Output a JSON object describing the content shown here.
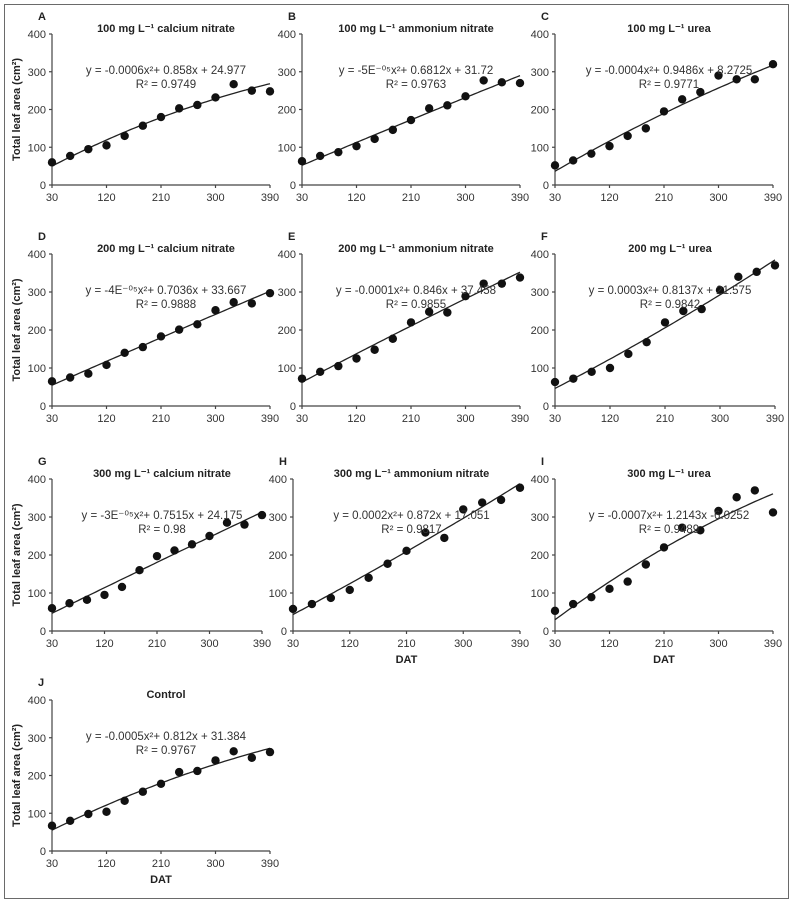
{
  "chart_data": [
    {
      "id": "A",
      "type": "scatter",
      "title": "100 mg L⁻¹ calcium nitrate",
      "equation": "y = -0.0006x²+ 0.858x + 24.977",
      "r2": "R² = 0.9749",
      "fit": {
        "a": -0.0006,
        "b": 0.858,
        "c": 24.977
      },
      "x": [
        30,
        60,
        90,
        120,
        150,
        180,
        210,
        240,
        270,
        300,
        330,
        360,
        390
      ],
      "values": [
        60,
        77,
        95,
        105,
        130,
        157,
        180,
        203,
        212,
        232,
        267,
        250,
        248
      ],
      "xlabel": "",
      "ylabel": "Total leaf area (cm²)",
      "xticks": [
        "30",
        "120",
        "210",
        "300",
        "390"
      ],
      "yticks": [
        "0",
        "100",
        "200",
        "300",
        "400"
      ],
      "xlim": [
        30,
        390
      ],
      "ylim": [
        0,
        400
      ]
    },
    {
      "id": "B",
      "type": "scatter",
      "title": "100 mg L⁻¹ ammonium nitrate",
      "equation": "y = -5E⁻⁰⁵x²+ 0.6812x + 31.72",
      "r2": "R² = 0.9763",
      "fit": {
        "a": -5e-05,
        "b": 0.6812,
        "c": 31.72
      },
      "x": [
        30,
        60,
        90,
        120,
        150,
        180,
        210,
        240,
        270,
        300,
        330,
        360,
        390
      ],
      "values": [
        63,
        77,
        87,
        103,
        122,
        146,
        172,
        203,
        211,
        235,
        277,
        272,
        270
      ],
      "xlabel": "",
      "ylabel": "",
      "xticks": [
        "30",
        "120",
        "210",
        "300",
        "390"
      ],
      "yticks": [
        "0",
        "100",
        "200",
        "300",
        "400"
      ],
      "xlim": [
        30,
        390
      ],
      "ylim": [
        0,
        400
      ]
    },
    {
      "id": "C",
      "type": "scatter",
      "title": "100 mg L⁻¹ urea",
      "equation": "y = -0.0004x²+ 0.9486x + 8.2725",
      "r2": "R² = 0.9771",
      "fit": {
        "a": -0.0004,
        "b": 0.9486,
        "c": 8.2725
      },
      "x": [
        30,
        60,
        90,
        120,
        150,
        180,
        210,
        240,
        270,
        300,
        330,
        360,
        390
      ],
      "values": [
        52,
        65,
        83,
        103,
        130,
        150,
        195,
        227,
        246,
        290,
        280,
        280,
        320
      ],
      "xlabel": "",
      "ylabel": "",
      "xticks": [
        "30",
        "120",
        "210",
        "300",
        "390"
      ],
      "yticks": [
        "0",
        "100",
        "200",
        "300",
        "400"
      ],
      "xlim": [
        30,
        390
      ],
      "ylim": [
        0,
        400
      ]
    },
    {
      "id": "D",
      "type": "scatter",
      "title": "200 mg L⁻¹ calcium nitrate",
      "equation": "y = -4E⁻⁰⁵x²+ 0.7036x + 33.667",
      "r2": "R² = 0.9888",
      "fit": {
        "a": -4e-05,
        "b": 0.7036,
        "c": 33.667
      },
      "x": [
        30,
        60,
        90,
        120,
        150,
        180,
        210,
        240,
        270,
        300,
        330,
        360,
        390
      ],
      "values": [
        65,
        75,
        85,
        108,
        140,
        155,
        183,
        201,
        215,
        252,
        273,
        270,
        297
      ],
      "xlabel": "",
      "ylabel": "Total leaf area (cm²)",
      "xticks": [
        "30",
        "120",
        "210",
        "300",
        "390"
      ],
      "yticks": [
        "0",
        "100",
        "200",
        "300",
        "400"
      ],
      "xlim": [
        30,
        390
      ],
      "ylim": [
        0,
        400
      ]
    },
    {
      "id": "E",
      "type": "scatter",
      "title": "200 mg L⁻¹ ammonium nitrate",
      "equation": "y = -0.0001x²+ 0.846x + 37.458",
      "r2": "R² = 0.9855",
      "fit": {
        "a": -0.0001,
        "b": 0.846,
        "c": 37.458
      },
      "x": [
        30,
        60,
        90,
        120,
        150,
        180,
        210,
        240,
        270,
        300,
        330,
        360,
        390
      ],
      "values": [
        72,
        90,
        105,
        125,
        148,
        177,
        220,
        248,
        246,
        289,
        322,
        322,
        338
      ],
      "xlabel": "",
      "ylabel": "",
      "xticks": [
        "30",
        "120",
        "210",
        "300",
        "390"
      ],
      "yticks": [
        "0",
        "100",
        "200",
        "300",
        "400"
      ],
      "xlim": [
        30,
        390
      ],
      "ylim": [
        0,
        400
      ]
    },
    {
      "id": "F",
      "type": "scatter",
      "title": "200 mg L⁻¹ urea",
      "equation": "y = 0.0003x²+ 0.8137x + 21.575",
      "r2": "R² = 0.9842",
      "fit": {
        "a": 0.0003,
        "b": 0.8137,
        "c": 21.575
      },
      "x": [
        30,
        60,
        90,
        120,
        150,
        180,
        210,
        240,
        270,
        300,
        330,
        360,
        390
      ],
      "values": [
        63,
        72,
        90,
        100,
        137,
        168,
        220,
        250,
        255,
        305,
        340,
        353,
        370
      ],
      "xlabel": "",
      "ylabel": "",
      "xticks": [
        "30",
        "120",
        "210",
        "300",
        "390"
      ],
      "yticks": [
        "0",
        "100",
        "200",
        "300",
        "400"
      ],
      "xlim": [
        30,
        390
      ],
      "ylim": [
        0,
        400
      ]
    },
    {
      "id": "G",
      "type": "scatter",
      "title": "300 mg L⁻¹ calcium nitrate",
      "equation": "y = -3E⁻⁰⁵x²+ 0.7515x + 24.175",
      "r2": "R² = 0.98",
      "fit": {
        "a": -3e-05,
        "b": 0.7515,
        "c": 24.175
      },
      "x": [
        30,
        60,
        90,
        120,
        150,
        180,
        210,
        240,
        270,
        300,
        330,
        360,
        390
      ],
      "values": [
        60,
        73,
        82,
        95,
        116,
        160,
        197,
        212,
        228,
        250,
        285,
        280,
        305
      ],
      "xlabel": "",
      "ylabel": "Total leaf area (cm²)",
      "xticks": [
        "30",
        "120",
        "210",
        "300",
        "390"
      ],
      "yticks": [
        "0",
        "100",
        "200",
        "300",
        "400"
      ],
      "xlim": [
        30,
        390
      ],
      "ylim": [
        0,
        400
      ]
    },
    {
      "id": "H",
      "type": "scatter",
      "title": "300 mg L⁻¹ ammonium nitrate",
      "equation": "y = 0.0002x²+ 0.872x + 17.051",
      "r2": "R² = 0.9817",
      "fit": {
        "a": 0.0002,
        "b": 0.872,
        "c": 17.051
      },
      "x": [
        30,
        60,
        90,
        120,
        150,
        180,
        210,
        240,
        270,
        300,
        330,
        360,
        390
      ],
      "values": [
        58,
        71,
        87,
        108,
        140,
        177,
        211,
        259,
        245,
        320,
        338,
        345,
        377
      ],
      "xlabel": "DAT",
      "ylabel": "",
      "xticks": [
        "30",
        "120",
        "210",
        "300",
        "390"
      ],
      "yticks": [
        "0",
        "100",
        "200",
        "300",
        "400"
      ],
      "xlim": [
        30,
        390
      ],
      "ylim": [
        0,
        400
      ]
    },
    {
      "id": "I",
      "type": "scatter",
      "title": "300 mg L⁻¹ urea",
      "equation": "y = -0.0007x²+ 1.2143x -6.0252",
      "r2": "R² = 0.9489",
      "fit": {
        "a": -0.0007,
        "b": 1.2143,
        "c": -6.0252
      },
      "x": [
        30,
        60,
        90,
        120,
        150,
        180,
        210,
        240,
        270,
        300,
        330,
        360,
        390
      ],
      "values": [
        53,
        71,
        89,
        111,
        130,
        175,
        220,
        272,
        265,
        316,
        352,
        370,
        312
      ],
      "xlabel": "DAT",
      "ylabel": "",
      "xticks": [
        "30",
        "120",
        "210",
        "300",
        "390"
      ],
      "yticks": [
        "0",
        "100",
        "200",
        "300",
        "400"
      ],
      "xlim": [
        30,
        390
      ],
      "ylim": [
        0,
        400
      ]
    },
    {
      "id": "J",
      "type": "scatter",
      "title": "Control",
      "equation": "y = -0.0005x²+ 0.812x + 31.384",
      "r2": "R² = 0.9767",
      "fit": {
        "a": -0.0005,
        "b": 0.812,
        "c": 31.384
      },
      "x": [
        30,
        60,
        90,
        120,
        150,
        180,
        210,
        240,
        270,
        300,
        330,
        360,
        390
      ],
      "values": [
        67,
        80,
        98,
        104,
        133,
        157,
        178,
        209,
        212,
        240,
        264,
        247,
        262
      ],
      "xlabel": "DAT",
      "ylabel": "Total leaf area (cm²)",
      "xticks": [
        "30",
        "120",
        "210",
        "300",
        "390"
      ],
      "yticks": [
        "0",
        "100",
        "200",
        "300",
        "400"
      ],
      "xlim": [
        30,
        390
      ],
      "ylim": [
        0,
        400
      ]
    }
  ]
}
